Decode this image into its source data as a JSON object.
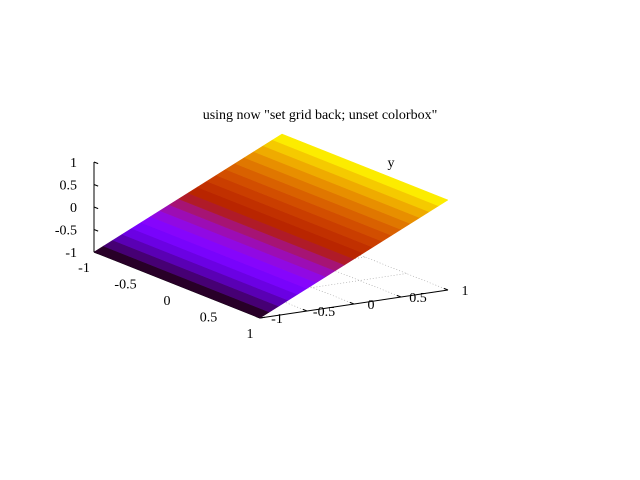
{
  "chart_data": {
    "type": "surface",
    "title": "using now \"set grid back; unset colorbox\"",
    "xlabel": "",
    "ylabel": "y",
    "zlabel": "",
    "xlim": [
      -1,
      1
    ],
    "ylim": [
      -1,
      1
    ],
    "zlim": [
      -1,
      1
    ],
    "x_ticks": [
      "-1",
      "-0.5",
      "0",
      "0.5",
      "1"
    ],
    "y_ticks": [
      "-1",
      "-0.5",
      "0",
      "0.5",
      "1"
    ],
    "z_ticks": [
      "-1",
      "-0.5",
      "0",
      "0.5",
      "1"
    ],
    "surface": {
      "function": "z = y",
      "samples": 20,
      "colormap": "gnuplot default (black-blue-purple-red-orange-yellow)"
    },
    "grid": "back",
    "colorbox": false
  }
}
